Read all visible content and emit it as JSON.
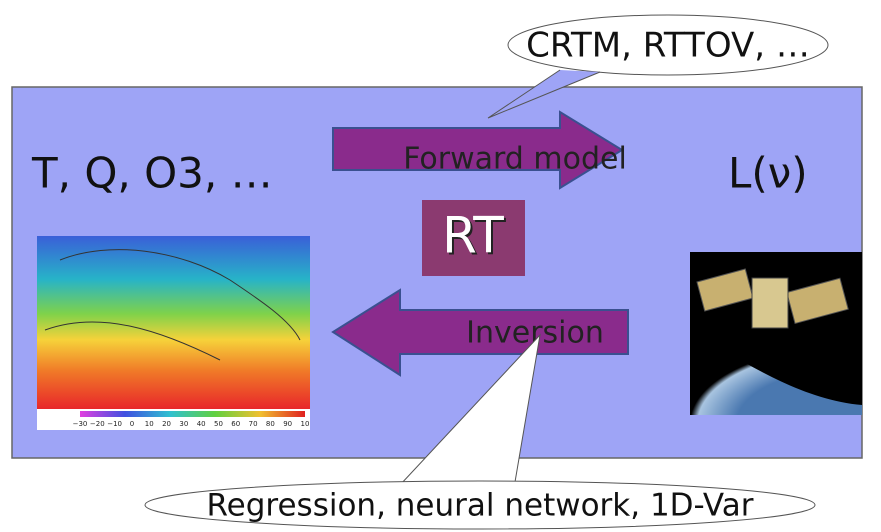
{
  "callout_top": "CRTM, RTTOV, …",
  "inputs": "T, Q, O3, …",
  "forward": "Forward model",
  "output": "L(ν)",
  "center": "RT",
  "inverse": "Inversion",
  "callout_bottom": "Regression, neural network, 1D-Var",
  "colorbar_labels": [
    "−30",
    "−20",
    "−10",
    "0",
    "10",
    "20",
    "30",
    "40",
    "50",
    "60",
    "70",
    "80",
    "90",
    "10"
  ]
}
